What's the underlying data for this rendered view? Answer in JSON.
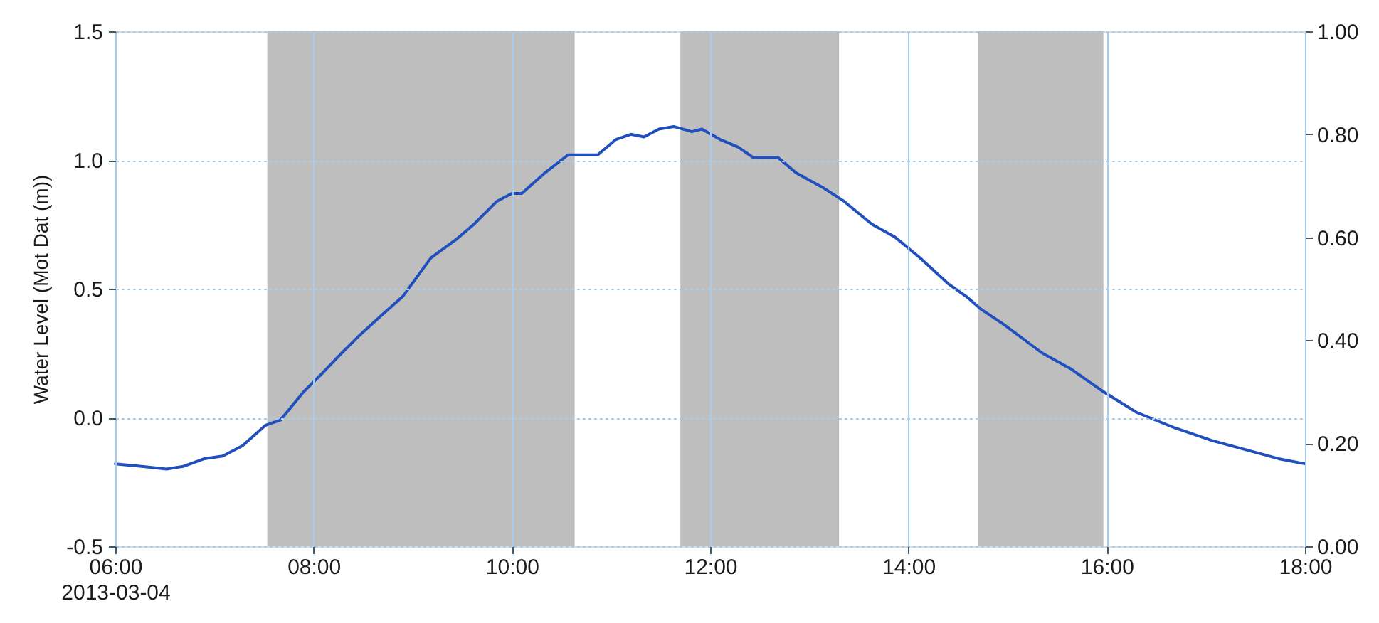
{
  "chart_data": {
    "type": "line",
    "ylabel": "Water Level (Mot Dat (m))",
    "x": [
      "2013-03-04T06:00",
      "2013-03-04T06:16",
      "2013-03-04T06:31",
      "2013-03-04T06:41",
      "2013-03-04T06:54",
      "2013-03-04T07:05",
      "2013-03-04T07:17",
      "2013-03-04T07:31",
      "2013-03-04T07:40",
      "2013-03-04T07:54",
      "2013-03-04T08:05",
      "2013-03-04T08:17",
      "2013-03-04T08:28",
      "2013-03-04T08:40",
      "2013-03-04T08:54",
      "2013-03-04T09:11",
      "2013-03-04T09:26",
      "2013-03-04T09:37",
      "2013-03-04T09:51",
      "2013-03-04T10:00",
      "2013-03-04T10:06",
      "2013-03-04T10:20",
      "2013-03-04T10:34",
      "2013-03-04T10:52",
      "2013-03-04T11:03",
      "2013-03-04T11:12",
      "2013-03-04T11:20",
      "2013-03-04T11:29",
      "2013-03-04T11:38",
      "2013-03-04T11:49",
      "2013-03-04T11:55",
      "2013-03-04T12:06",
      "2013-03-04T12:17",
      "2013-03-04T12:26",
      "2013-03-04T12:41",
      "2013-03-04T12:52",
      "2013-03-04T13:09",
      "2013-03-04T13:21",
      "2013-03-04T13:38",
      "2013-03-04T13:52",
      "2013-03-04T14:07",
      "2013-03-04T14:24",
      "2013-03-04T14:35",
      "2013-03-04T14:44",
      "2013-03-04T14:58",
      "2013-03-04T15:21",
      "2013-03-04T15:38",
      "2013-03-04T15:58",
      "2013-03-04T16:18",
      "2013-03-04T16:41",
      "2013-03-04T17:04",
      "2013-03-04T17:27",
      "2013-03-04T17:44",
      "2013-03-04T18:00"
    ],
    "series": [
      {
        "color": "#2150be",
        "values": [
          -0.18,
          -0.19,
          -0.2,
          -0.19,
          -0.16,
          -0.15,
          -0.11,
          -0.03,
          -0.01,
          0.1,
          0.17,
          0.25,
          0.32,
          0.39,
          0.47,
          0.62,
          0.69,
          0.75,
          0.84,
          0.87,
          0.87,
          0.95,
          1.02,
          1.02,
          1.08,
          1.1,
          1.09,
          1.12,
          1.13,
          1.11,
          1.12,
          1.08,
          1.05,
          1.01,
          1.01,
          0.95,
          0.89,
          0.84,
          0.75,
          0.7,
          0.62,
          0.52,
          0.47,
          0.42,
          0.36,
          0.25,
          0.19,
          0.1,
          0.02,
          -0.04,
          -0.09,
          -0.13,
          -0.16,
          -0.18
        ]
      }
    ],
    "xlim": [
      "2013-03-04T06:00",
      "2013-03-04T18:00"
    ],
    "xticks": [
      {
        "value": "2013-03-04T06:00",
        "label": "06:00\n2013-03-04"
      },
      {
        "value": "2013-03-04T08:00",
        "label": "08:00"
      },
      {
        "value": "2013-03-04T10:00",
        "label": "10:00"
      },
      {
        "value": "2013-03-04T12:00",
        "label": "12:00"
      },
      {
        "value": "2013-03-04T14:00",
        "label": "14:00"
      },
      {
        "value": "2013-03-04T16:00",
        "label": "16:00"
      },
      {
        "value": "2013-03-04T18:00",
        "label": "18:00"
      }
    ],
    "ylim": [
      -0.5,
      1.5
    ],
    "yticks": [
      {
        "value": -0.5,
        "label": "-0.5"
      },
      {
        "value": 0,
        "label": "0.0"
      },
      {
        "value": 0.5,
        "label": "0.5"
      },
      {
        "value": 1,
        "label": "1.0"
      },
      {
        "value": 1.5,
        "label": "1.5"
      }
    ],
    "y2lim": [
      0,
      1
    ],
    "y2ticks": [
      {
        "value": 0,
        "label": "0.00"
      },
      {
        "value": 0.2,
        "label": "0.20"
      },
      {
        "value": 0.4,
        "label": "0.40"
      },
      {
        "value": 0.6,
        "label": "0.60"
      },
      {
        "value": 0.8,
        "label": "0.80"
      },
      {
        "value": 1,
        "label": "1.00"
      }
    ],
    "bands": [
      {
        "axis": "x",
        "from": "2013-03-04T07:32",
        "to": "2013-03-04T10:38",
        "color": "#bebebe"
      },
      {
        "axis": "x",
        "from": "2013-03-04T11:42",
        "to": "2013-03-04T13:18",
        "color": "#bebebe"
      },
      {
        "axis": "x",
        "from": "2013-03-04T14:42",
        "to": "2013-03-04T15:58",
        "color": "#bebebe"
      }
    ],
    "grid": true
  }
}
